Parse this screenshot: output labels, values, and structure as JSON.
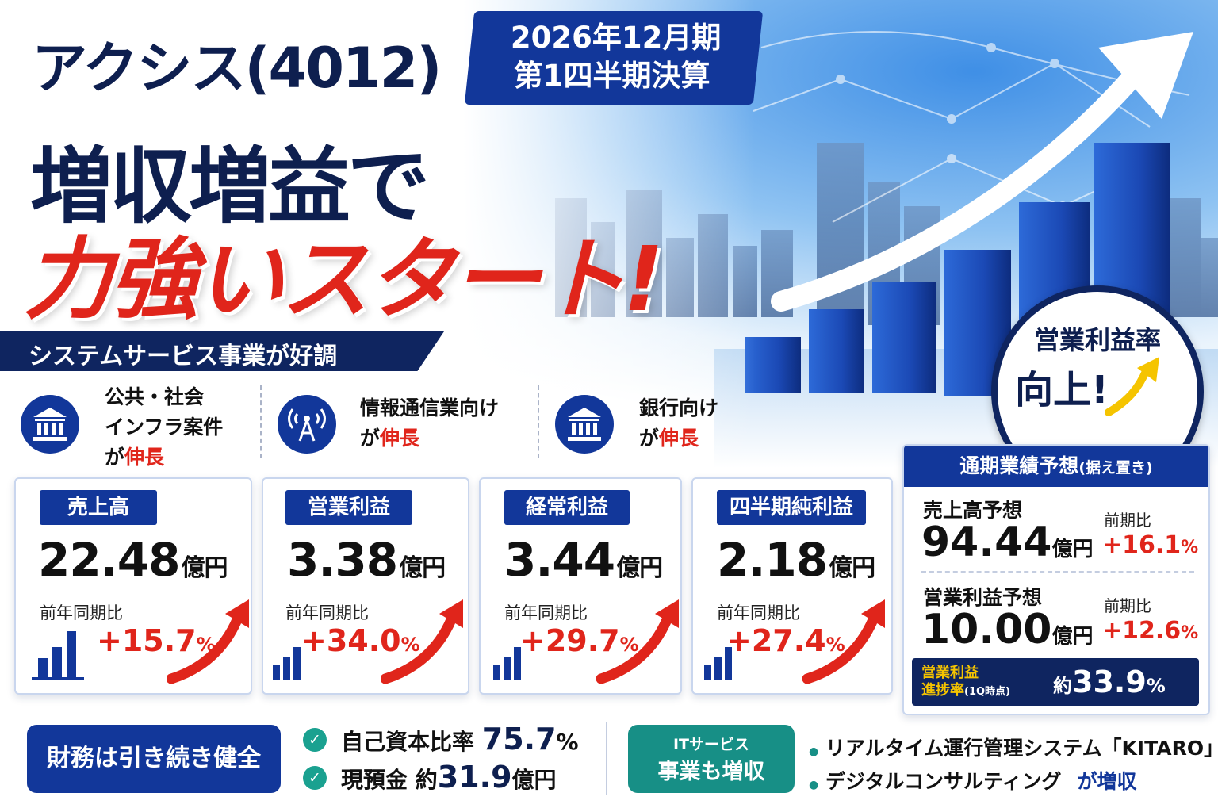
{
  "headline": {
    "company": "アクシス(4012)",
    "period_line1": "2026年12月期",
    "period_line2": "第1四半期決算",
    "line2": "増収増益で",
    "line3": "力強いスタート!"
  },
  "segment_banner": "システムサービス事業が好調",
  "features": [
    {
      "icon": "bank-icon",
      "line1": "公共・社会",
      "line2": "インフラ案件",
      "prefix": "が",
      "highlight": "伸長"
    },
    {
      "icon": "antenna-icon",
      "line1": "情報通信業向け",
      "prefix": "が",
      "highlight": "伸長"
    },
    {
      "icon": "bank-icon",
      "line1": "銀行向け",
      "prefix": "が",
      "highlight": "伸長"
    }
  ],
  "metrics": [
    {
      "label": "売上高",
      "value": "22.48",
      "unit": "億円",
      "yoy_label": "前年同期比",
      "yoy_value": "+15.7",
      "yoy_unit": "%"
    },
    {
      "label": "営業利益",
      "value": "3.38",
      "unit": "億円",
      "yoy_label": "前年同期比",
      "yoy_value": "+34.0",
      "yoy_unit": "%"
    },
    {
      "label": "経常利益",
      "value": "3.44",
      "unit": "億円",
      "yoy_label": "前年同期比",
      "yoy_value": "+29.7",
      "yoy_unit": "%"
    },
    {
      "label": "四半期純利益",
      "value": "2.18",
      "unit": "億円",
      "yoy_label": "前年同期比",
      "yoy_value": "+27.4",
      "yoy_unit": "%"
    }
  ],
  "margin_badge": {
    "line1": "営業利益率",
    "line2": "向上!"
  },
  "forecast": {
    "title": "通期業績予想",
    "title_note": "(据え置き)",
    "rows": [
      {
        "label": "売上高予想",
        "value": "94.44",
        "unit": "億円",
        "cmp_label": "前期比",
        "cmp_value": "+16.1",
        "cmp_unit": "%"
      },
      {
        "label": "営業利益予想",
        "value": "10.00",
        "unit": "億円",
        "cmp_label": "前期比",
        "cmp_value": "+12.6",
        "cmp_unit": "%"
      }
    ],
    "progress": {
      "label1": "営業利益",
      "label2": "進捗率",
      "note": "(1Q時点)",
      "prefix": "約",
      "value": "33.9",
      "unit": "%"
    }
  },
  "financial": {
    "pill": "財務は引き続き健全",
    "items": [
      {
        "label": "自己資本比率",
        "value": "75.7",
        "unit": "%"
      },
      {
        "label": "現預金",
        "prefix": "約",
        "value": "31.9",
        "unit": "億円"
      }
    ]
  },
  "it_service": {
    "pill_line1": "ITサービス",
    "pill_line2": "事業も増収",
    "bullets": [
      {
        "text": "リアルタイム運行管理システム「KITARO」"
      },
      {
        "text": "デジタルコンサルティング",
        "suffix": "が増収"
      }
    ]
  },
  "colors": {
    "navy": "#0f2560",
    "blue": "#12379a",
    "red": "#e0251b",
    "teal": "#1aa190",
    "yellow": "#f5c400"
  }
}
